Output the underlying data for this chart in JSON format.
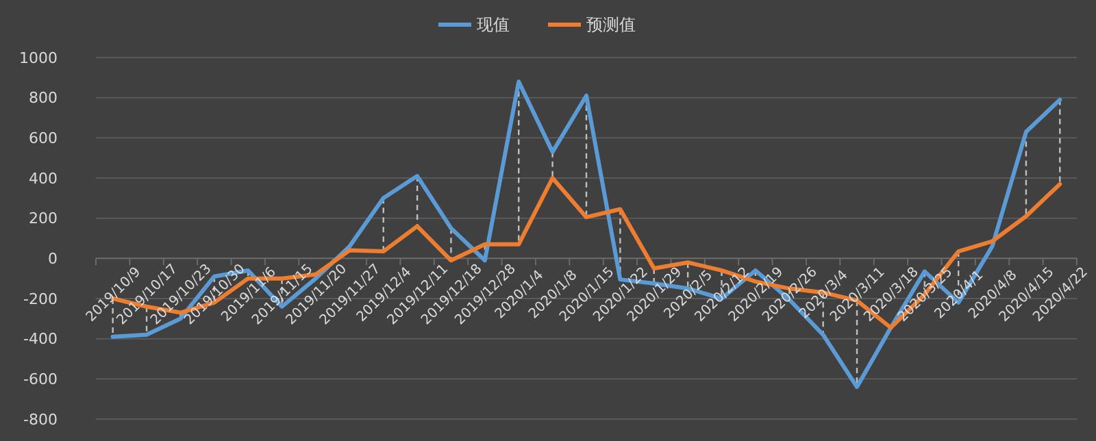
{
  "chart_data": {
    "type": "line",
    "categories": [
      "2019/10/9",
      "2019/10/17",
      "2019/10/23",
      "2019/10/30",
      "2019/11/6",
      "2019/11/15",
      "2019/11/20",
      "2019/11/27",
      "2019/12/4",
      "2019/12/11",
      "2019/12/18",
      "2019/12/28",
      "2020/1/4",
      "2020/1/8",
      "2020/1/15",
      "2020/1/22",
      "2020/1/29",
      "2020/2/5",
      "2020/2/12",
      "2020/2/19",
      "2020/2/26",
      "2020/3/4",
      "2020/3/11",
      "2020/3/18",
      "2020/3/25",
      "2020/4/1",
      "2020/4/8",
      "2020/4/15",
      "2020/4/22"
    ],
    "series": [
      {
        "name": "现值",
        "color": "#5b9bd5",
        "values": [
          -390,
          -380,
          -300,
          -90,
          -60,
          -240,
          -100,
          60,
          300,
          410,
          150,
          -10,
          880,
          530,
          810,
          -105,
          -125,
          -150,
          -200,
          -60,
          -205,
          -380,
          -640,
          -345,
          -65,
          -220,
          60,
          630,
          790
        ]
      },
      {
        "name": "预测值",
        "color": "#ed7d31",
        "values": [
          -200,
          -240,
          -270,
          -220,
          -100,
          -100,
          -80,
          40,
          35,
          160,
          -10,
          70,
          70,
          400,
          205,
          245,
          -50,
          -20,
          -60,
          -115,
          -150,
          -170,
          -210,
          -345,
          -180,
          35,
          85,
          210,
          370
        ]
      }
    ],
    "ylim": [
      -800,
      1000
    ],
    "yticks": [
      -800,
      -600,
      -400,
      -200,
      0,
      200,
      400,
      600,
      800,
      1000
    ],
    "grid": "y",
    "legend": "top",
    "marker": "none",
    "line_style": "solid"
  }
}
